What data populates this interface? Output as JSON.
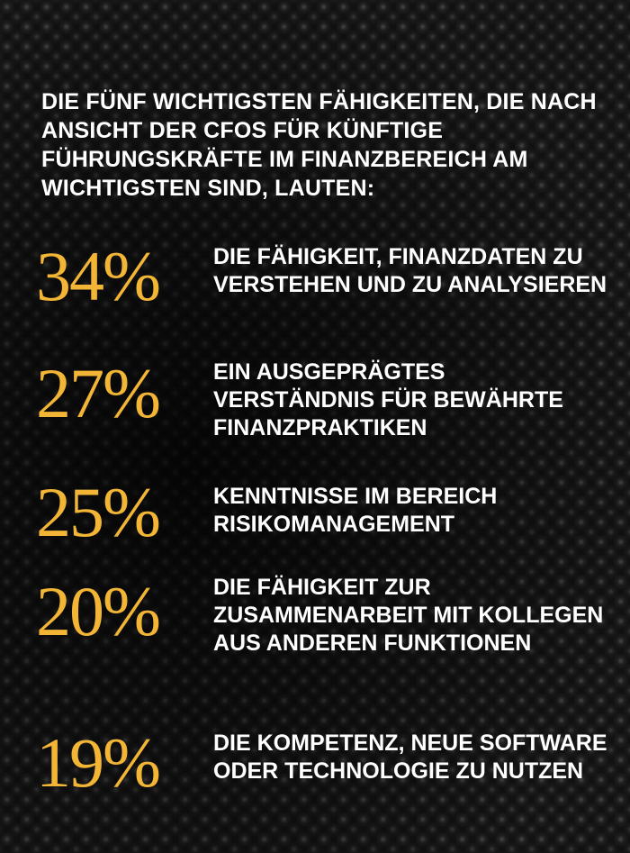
{
  "headline": "DIE FÜNF WICHTIGSTEN FÄHIGKEITEN, DIE NACH ANSICHT DER CFOS FÜR KÜNFTIGE FÜHRUNGSKRÄFTE IM FINANZBEREICH AM WICHTIGSTEN SIND, LAUTEN:",
  "colors": {
    "accent": "#f2b535",
    "text": "#ffffff",
    "background": "#111111"
  },
  "stats": [
    {
      "value": "34%",
      "description": "DIE FÄHIGKEIT, FINANZDATEN ZU VERSTEHEN UND ZU ANALYSIEREN"
    },
    {
      "value": "27%",
      "description": "EIN AUSGEPRÄGTES VERSTÄNDNIS FÜR BEWÄHRTE FINANZPRAKTIKEN"
    },
    {
      "value": "25%",
      "description": "KENNTNISSE IM BEREICH RISIKOMANAGEMENT"
    },
    {
      "value": "20%",
      "description": "DIE FÄHIGKEIT ZUR ZUSAMMENARBEIT MIT KOLLEGEN AUS ANDEREN FUNKTIONEN"
    },
    {
      "value": "19%",
      "description": "DIE KOMPETENZ, NEUE SOFTWARE ODER TECHNOLOGIE ZU NUTZEN"
    }
  ]
}
